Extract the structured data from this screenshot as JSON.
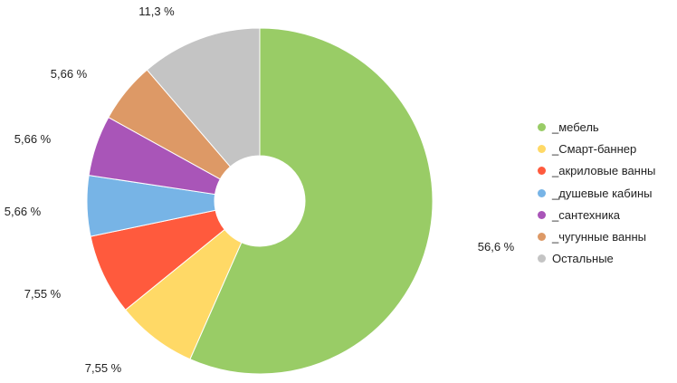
{
  "chart_data": {
    "type": "pie",
    "donut": true,
    "start_angle_deg": 0,
    "slices": [
      {
        "name": "_мебель",
        "value": 56.6,
        "label": "56,6 %",
        "color": "#99cc66"
      },
      {
        "name": "_Смарт-баннер",
        "value": 7.55,
        "label": "7,55 %",
        "color": "#ffd966"
      },
      {
        "name": "_акриловые ванны",
        "value": 7.55,
        "label": "7,55 %",
        "color": "#ff5a3d"
      },
      {
        "name": "_душевые кабины",
        "value": 5.66,
        "label": "5,66 %",
        "color": "#77b4e6"
      },
      {
        "name": "_сантехника",
        "value": 5.66,
        "label": "5,66 %",
        "color": "#a955b8"
      },
      {
        "name": "_чугунные ванны",
        "value": 5.66,
        "label": "5,66 %",
        "color": "#dd9966"
      },
      {
        "name": "Остальные",
        "value": 11.3,
        "label": "11,3 %",
        "color": "#c4c4c4"
      }
    ],
    "legend_position": "right"
  }
}
